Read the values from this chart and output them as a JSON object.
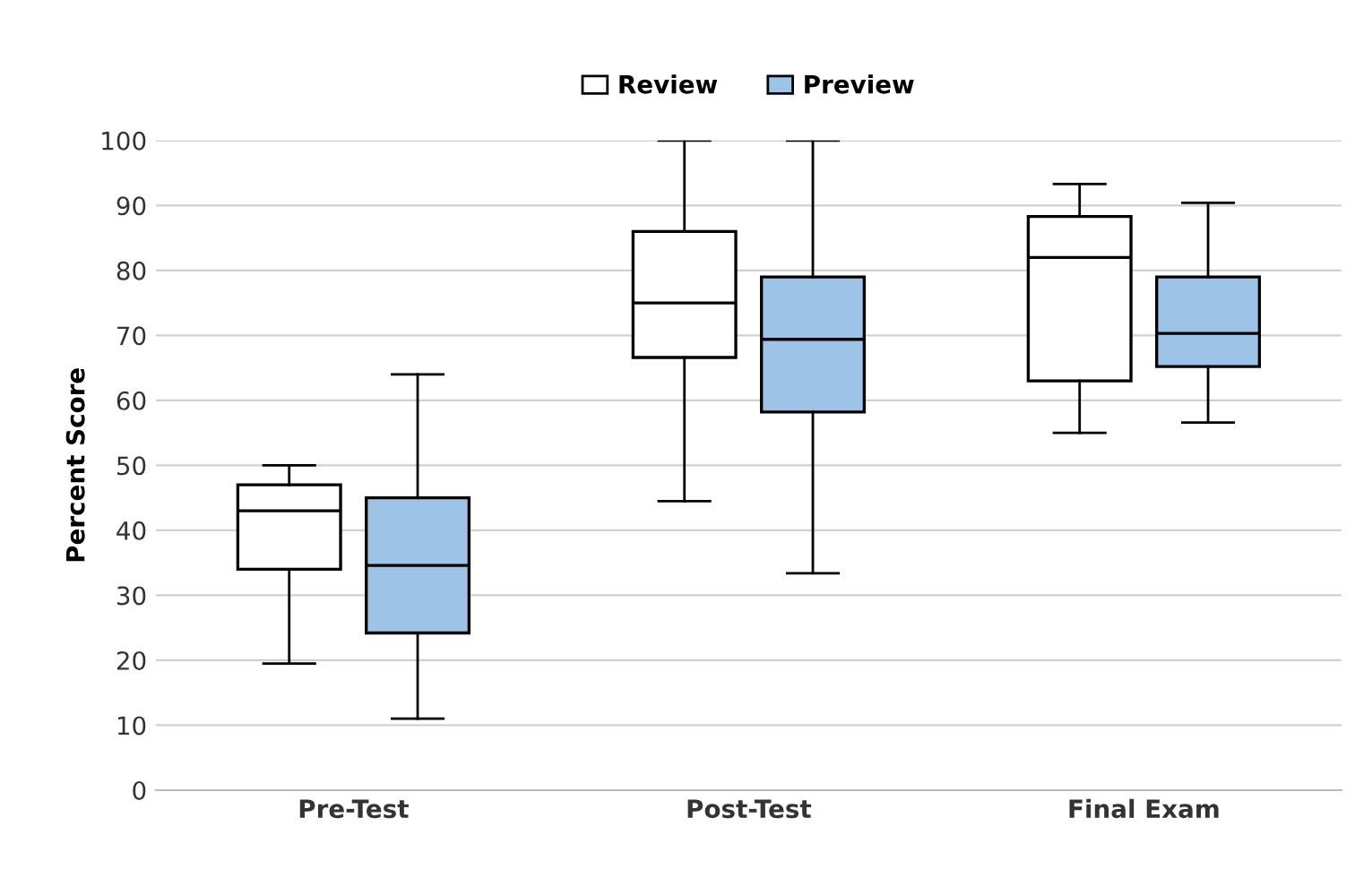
{
  "chart_data": {
    "type": "box",
    "ylabel": "Percent Score",
    "categories": [
      "Pre-Test",
      "Post-Test",
      "Final Exam"
    ],
    "ylim": [
      0,
      100
    ],
    "yticks": [
      0,
      10,
      20,
      30,
      40,
      50,
      60,
      70,
      80,
      90,
      100
    ],
    "grid": "y",
    "legend": "top",
    "series": [
      {
        "name": "Review",
        "color": "#ffffff",
        "boxes": [
          {
            "low": 19.5,
            "q1": 34,
            "median": 43,
            "q3": 47,
            "high": 50
          },
          {
            "low": 44.5,
            "q1": 66.6,
            "median": 75,
            "q3": 86,
            "high": 100
          },
          {
            "low": 55,
            "q1": 63,
            "median": 82,
            "q3": 88.3,
            "high": 93.3
          }
        ]
      },
      {
        "name": "Preview",
        "color": "#9dc3e6",
        "boxes": [
          {
            "low": 11,
            "q1": 24.2,
            "median": 34.6,
            "q3": 45,
            "high": 64
          },
          {
            "low": 33.4,
            "q1": 58.2,
            "median": 69.4,
            "q3": 79,
            "high": 100
          },
          {
            "low": 56.6,
            "q1": 65.2,
            "median": 70.3,
            "q3": 79,
            "high": 90.4
          }
        ]
      }
    ]
  }
}
